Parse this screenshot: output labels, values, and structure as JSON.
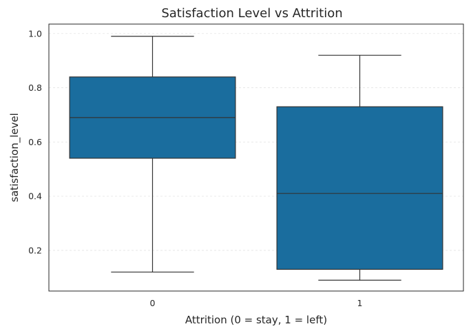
{
  "chart_data": {
    "type": "box",
    "title": "Satisfaction Level vs Attrition",
    "xlabel": "Attrition (0 = stay, 1 = left)",
    "ylabel": "satisfaction_level",
    "categories": [
      "0",
      "1"
    ],
    "boxes": [
      {
        "category": "0",
        "whisker_low": 0.12,
        "q1": 0.54,
        "median": 0.69,
        "q3": 0.84,
        "whisker_high": 0.99
      },
      {
        "category": "1",
        "whisker_low": 0.09,
        "q1": 0.13,
        "median": 0.41,
        "q3": 0.73,
        "whisker_high": 0.92
      }
    ],
    "ylim": [
      0.05,
      1.035
    ],
    "yticks": [
      0.2,
      0.4,
      0.6,
      0.8,
      1.0
    ],
    "ytick_labels": [
      "0.2",
      "0.4",
      "0.6",
      "0.8",
      "1.0"
    ],
    "grid": true,
    "box_color": "#1a6d9e",
    "line_color": "#333333"
  }
}
